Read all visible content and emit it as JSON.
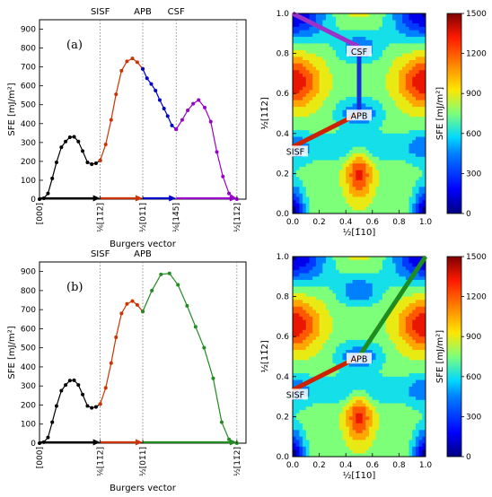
{
  "chart_data": [
    {
      "id": "a",
      "type": "line",
      "panel_label": "(a)",
      "xlabel": "Burgers vector",
      "ylabel": "SFE [mJ/m²]",
      "ylim": [
        0,
        950
      ],
      "yticks": [
        0,
        100,
        200,
        300,
        400,
        500,
        600,
        700,
        800,
        900
      ],
      "xlim": [
        0,
        3.4
      ],
      "xticks": [
        {
          "x": 0,
          "label": "[000]"
        },
        {
          "x": 1,
          "label": "⅙[11̄2]"
        },
        {
          "x": 1.7,
          "label": "½[01̄1]"
        },
        {
          "x": 3.25,
          "label": "½[11̄2]"
        }
      ],
      "top_labels": [
        {
          "x": 1,
          "label": "SISF"
        },
        {
          "x": 1.7,
          "label": "APB"
        },
        {
          "x": 2.25,
          "label": "CSF"
        }
      ],
      "extra_tick": {
        "x": 2.25,
        "label": "⅙[14̄5]"
      },
      "vlines": [
        1,
        1.7,
        2.25,
        3.25
      ],
      "series": [
        {
          "color": "#000000",
          "x": [
            0,
            0.07,
            0.14,
            0.21,
            0.28,
            0.36,
            0.43,
            0.5,
            0.57,
            0.64,
            0.71,
            0.79,
            0.86,
            0.93,
            1.0
          ],
          "y": [
            0,
            5,
            30,
            110,
            195,
            275,
            305,
            328,
            330,
            305,
            255,
            195,
            185,
            190,
            205
          ]
        },
        {
          "color": "#cc3300",
          "x": [
            1.0,
            1.09,
            1.18,
            1.26,
            1.35,
            1.44,
            1.53,
            1.61,
            1.7
          ],
          "y": [
            205,
            290,
            420,
            555,
            680,
            730,
            745,
            725,
            690
          ]
        },
        {
          "color": "#0000cc",
          "x": [
            1.7,
            1.77,
            1.84,
            1.91,
            1.98,
            2.05,
            2.11,
            2.18,
            2.25
          ],
          "y": [
            690,
            640,
            610,
            575,
            525,
            480,
            440,
            390,
            370
          ]
        },
        {
          "color": "#9900cc",
          "x": [
            2.25,
            2.35,
            2.44,
            2.53,
            2.62,
            2.72,
            2.82,
            2.92,
            3.02,
            3.12,
            3.25
          ],
          "y": [
            370,
            420,
            470,
            505,
            525,
            485,
            410,
            250,
            120,
            30,
            0
          ]
        }
      ]
    },
    {
      "id": "b",
      "type": "line",
      "panel_label": "(b)",
      "xlabel": "Burgers vector",
      "ylabel": "SFE [mJ/m²]",
      "ylim": [
        0,
        950
      ],
      "yticks": [
        0,
        100,
        200,
        300,
        400,
        500,
        600,
        700,
        800,
        900
      ],
      "xlim": [
        0,
        3.4
      ],
      "xticks": [
        {
          "x": 0,
          "label": "[000]"
        },
        {
          "x": 1,
          "label": "⅙[11̄2]"
        },
        {
          "x": 1.7,
          "label": "½[01̄1]"
        },
        {
          "x": 3.25,
          "label": "½[11̄2]"
        }
      ],
      "top_labels": [
        {
          "x": 1,
          "label": "SISF"
        },
        {
          "x": 1.7,
          "label": "APB"
        }
      ],
      "vlines": [
        1,
        1.7,
        3.25
      ],
      "series": [
        {
          "color": "#000000",
          "x": [
            0,
            0.07,
            0.14,
            0.21,
            0.28,
            0.36,
            0.43,
            0.5,
            0.57,
            0.64,
            0.71,
            0.79,
            0.86,
            0.93,
            1.0
          ],
          "y": [
            0,
            5,
            30,
            110,
            195,
            275,
            305,
            328,
            330,
            305,
            255,
            195,
            185,
            190,
            205
          ]
        },
        {
          "color": "#cc3300",
          "x": [
            1.0,
            1.09,
            1.18,
            1.26,
            1.35,
            1.44,
            1.53,
            1.61,
            1.7
          ],
          "y": [
            205,
            290,
            420,
            555,
            680,
            730,
            745,
            725,
            690
          ]
        },
        {
          "color": "#228b22",
          "x": [
            1.7,
            1.85,
            2.0,
            2.14,
            2.28,
            2.43,
            2.57,
            2.71,
            2.86,
            3.0,
            3.12,
            3.25
          ],
          "y": [
            690,
            800,
            885,
            890,
            830,
            720,
            610,
            500,
            340,
            110,
            20,
            0
          ]
        }
      ]
    },
    {
      "id": "c",
      "type": "heatmap",
      "xlabel": "½[1̄10]",
      "ylabel": "½[11̄2]",
      "xlim": [
        0,
        1
      ],
      "ylim": [
        0,
        1
      ],
      "xticks": [
        0.0,
        0.2,
        0.4,
        0.6,
        0.8,
        1.0
      ],
      "yticks": [
        0.0,
        0.2,
        0.4,
        0.6,
        0.8,
        1.0
      ],
      "colorbar": {
        "label": "SFE [mJ/m²]",
        "ticks": [
          0,
          300,
          600,
          900,
          1200,
          1500
        ],
        "range": [
          0,
          1500
        ]
      },
      "paths": [
        {
          "label": "SISF",
          "color": "#cc2200",
          "from": [
            0,
            0.333
          ],
          "to": [
            0.5,
            0.5
          ]
        },
        {
          "label": "APB",
          "color": "#1530d8",
          "from": [
            0.5,
            0.5
          ],
          "to": [
            0.5,
            0.833
          ]
        },
        {
          "label": "CSF",
          "color": "#9b32c8",
          "from": [
            0.5,
            0.833
          ],
          "to": [
            0,
            1
          ]
        }
      ],
      "labels": [
        {
          "text": "SISF",
          "x": 0.02,
          "y": 0.33
        },
        {
          "text": "APB",
          "x": 0.5,
          "y": 0.51
        },
        {
          "text": "CSF",
          "x": 0.5,
          "y": 0.83
        }
      ]
    },
    {
      "id": "d",
      "type": "heatmap",
      "xlabel": "½[1̄10]",
      "ylabel": "½[11̄2]",
      "xlim": [
        0,
        1
      ],
      "ylim": [
        0,
        1
      ],
      "xticks": [
        0.0,
        0.2,
        0.4,
        0.6,
        0.8,
        1.0
      ],
      "yticks": [
        0.0,
        0.2,
        0.4,
        0.6,
        0.8,
        1.0
      ],
      "colorbar": {
        "label": "SFE [mJ/m²]",
        "ticks": [
          0,
          300,
          600,
          900,
          1200,
          1500
        ],
        "range": [
          0,
          1500
        ]
      },
      "paths": [
        {
          "label": "SISF",
          "color": "#cc2200",
          "from": [
            0,
            0.333
          ],
          "to": [
            0.5,
            0.5
          ]
        },
        {
          "label": "APB",
          "color": "#1e8c1e",
          "from": [
            0.5,
            0.5
          ],
          "to": [
            1,
            1
          ]
        }
      ],
      "labels": [
        {
          "text": "SISF",
          "x": 0.02,
          "y": 0.33
        },
        {
          "text": "APB",
          "x": 0.5,
          "y": 0.51
        }
      ]
    }
  ]
}
